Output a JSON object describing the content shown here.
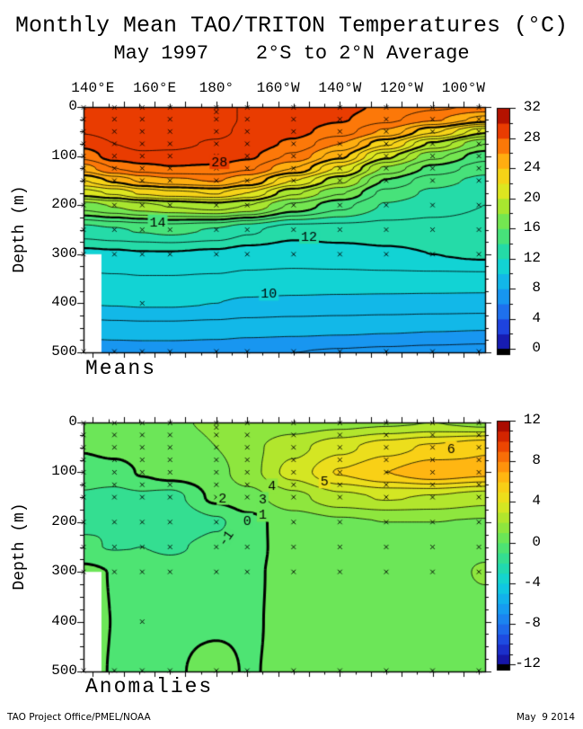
{
  "title": "Monthly Mean TAO/TRITON Temperatures (°C)",
  "subtitle": "May 1997    2°S to 2°N Average",
  "footer": {
    "left": "TAO Project Office/PMEL/NOAA",
    "right": "May  9 2014"
  },
  "style": {
    "palette_anchors": [
      "#140a96",
      "#1e3cdc",
      "#1e78f0",
      "#14a8f0",
      "#0fd2dc",
      "#28dca0",
      "#5ae664",
      "#a0e632",
      "#e6e61e",
      "#ffc814",
      "#ff820a",
      "#e63200",
      "#960000"
    ],
    "contour_color": "#000000",
    "background": "#ffffff",
    "out_of_range_color": "#000000"
  },
  "axes": {
    "lon_domain_deg_east": [
      137,
      267
    ],
    "lon_ticks": [
      {
        "lon": 140,
        "label": "140°E"
      },
      {
        "lon": 160,
        "label": "160°E"
      },
      {
        "lon": 180,
        "label": "180°"
      },
      {
        "lon": 200,
        "label": "160°W"
      },
      {
        "lon": 220,
        "label": "140°W"
      },
      {
        "lon": 240,
        "label": "120°W"
      },
      {
        "lon": 260,
        "label": "100°W"
      }
    ],
    "lon_minor_step": 5,
    "lon_major_step": 10,
    "depth_range": [
      0,
      500
    ],
    "depth_tick_labels": [
      0,
      100,
      200,
      300,
      400,
      500
    ],
    "depth_minor_step": 25,
    "depth_label": "Depth (m)"
  },
  "moorings": {
    "lons_deg_east": [
      137,
      147,
      156,
      165,
      180,
      190,
      205,
      220,
      235,
      250,
      265
    ],
    "depths_m": [
      1,
      25,
      50,
      75,
      100,
      125,
      150,
      200,
      250,
      300,
      500
    ],
    "extra_depths": {
      "156": [
        400
      ],
      "180": [
        10
      ]
    }
  },
  "missing_region": {
    "lon_from": 137,
    "lon_to": 142.8,
    "depth_from": 300,
    "depth_to": 500
  },
  "chart_data": [
    {
      "type": "heatmap",
      "caption": "Means",
      "units": "°C",
      "lons_deg_east": [
        137,
        147,
        156,
        165,
        180,
        190,
        205,
        220,
        235,
        250,
        267
      ],
      "depths_m": [
        0,
        25,
        50,
        75,
        100,
        125,
        150,
        175,
        200,
        250,
        300,
        350,
        400,
        450,
        500
      ],
      "values": [
        [
          29.4,
          29.5,
          29.6,
          29.5,
          29.3,
          28.9,
          28.6,
          28.3,
          27.8,
          27.2,
          26.8
        ],
        [
          29.3,
          29.5,
          29.6,
          29.5,
          29.3,
          28.9,
          28.5,
          28.1,
          27.3,
          26.2,
          24.6
        ],
        [
          29.1,
          29.4,
          29.5,
          29.5,
          29.2,
          28.8,
          28.3,
          27.5,
          25.8,
          23.2,
          20.2
        ],
        [
          28.3,
          29.0,
          29.3,
          29.2,
          28.9,
          28.6,
          27.8,
          26.0,
          23.2,
          19.8,
          17.0
        ],
        [
          27.4,
          28.5,
          28.8,
          28.8,
          28.6,
          28.2,
          26.8,
          24.3,
          20.3,
          17.3,
          15.4
        ],
        [
          25.5,
          27.0,
          27.6,
          27.9,
          27.8,
          27.2,
          25.0,
          21.8,
          17.8,
          15.7,
          14.4
        ],
        [
          23.0,
          24.2,
          25.2,
          25.7,
          26.1,
          25.0,
          22.0,
          19.3,
          15.9,
          14.4,
          13.7
        ],
        [
          20.5,
          21.2,
          22.2,
          22.7,
          23.1,
          22.0,
          19.2,
          17.1,
          14.7,
          13.8,
          13.3
        ],
        [
          17.5,
          18.1,
          18.7,
          19.1,
          19.6,
          19.0,
          16.8,
          15.3,
          13.9,
          13.4,
          13.0
        ],
        [
          13.6,
          13.9,
          14.1,
          14.3,
          13.9,
          13.2,
          12.4,
          12.5,
          12.55,
          12.6,
          12.6
        ],
        [
          11.7,
          11.8,
          11.9,
          11.9,
          11.75,
          11.5,
          11.4,
          11.6,
          11.8,
          12.0,
          12.2
        ],
        [
          10.85,
          10.9,
          10.95,
          10.95,
          10.9,
          10.8,
          10.75,
          10.7,
          10.7,
          10.7,
          10.7
        ],
        [
          10.0,
          10.05,
          10.1,
          10.1,
          10.0,
          9.85,
          9.75,
          9.7,
          9.65,
          9.6,
          9.55
        ],
        [
          8.6,
          8.7,
          8.75,
          8.75,
          8.65,
          8.5,
          8.4,
          8.3,
          8.2,
          8.1,
          8.05
        ],
        [
          7.2,
          7.3,
          7.35,
          7.35,
          7.25,
          7.1,
          7.0,
          6.9,
          6.8,
          6.7,
          6.6
        ]
      ],
      "contour_interval": 1,
      "thick_levels": [
        12,
        16,
        20,
        24,
        28
      ],
      "dashed_below": null,
      "fill_band_step": 2,
      "colorbar": {
        "min": 0,
        "max": 32,
        "labels": [
          32,
          28,
          24,
          20,
          16,
          12,
          8,
          4,
          0
        ],
        "minor_tick": 2,
        "major_tick": 4
      },
      "contour_labels": [
        {
          "level": 28,
          "lon": 181,
          "depth": 112
        },
        {
          "level": 14,
          "lon": 161,
          "depth": 234
        },
        {
          "level": 12,
          "lon": 210,
          "depth": 264
        },
        {
          "level": 10,
          "lon": 197,
          "depth": 380
        }
      ]
    },
    {
      "type": "heatmap",
      "caption": "Anomalies",
      "units": "°C",
      "lons_deg_east": [
        137,
        147,
        156,
        165,
        180,
        190,
        205,
        220,
        235,
        250,
        267
      ],
      "depths_m": [
        0,
        50,
        100,
        150,
        200,
        250,
        300,
        400,
        500
      ],
      "values": [
        [
          0.5,
          0.6,
          0.7,
          0.9,
          1.1,
          1.3,
          1.4,
          1.6,
          1.8,
          2.0,
          1.6
        ],
        [
          0.1,
          0.4,
          0.5,
          0.6,
          1.0,
          1.7,
          2.7,
          3.7,
          4.6,
          5.2,
          5.9
        ],
        [
          -0.6,
          -0.5,
          0.1,
          0.5,
          0.6,
          1.6,
          3.4,
          5.1,
          6.0,
          6.8,
          6.3
        ],
        [
          -1.1,
          -1.3,
          -1.2,
          -1.4,
          0.25,
          0.6,
          1.7,
          2.7,
          3.1,
          2.9,
          2.4
        ],
        [
          -1.1,
          -1.0,
          -1.6,
          -2.0,
          -1.2,
          -0.3,
          0.45,
          0.8,
          1.0,
          1.0,
          0.9
        ],
        [
          -0.9,
          -1.05,
          -1.0,
          -1.2,
          -0.6,
          -0.25,
          0.35,
          0.5,
          0.6,
          0.65,
          0.8
        ],
        [
          0.3,
          -0.05,
          -0.3,
          -0.4,
          -0.25,
          -0.15,
          0.3,
          0.4,
          0.45,
          0.5,
          1.1
        ],
        [
          0.35,
          -0.02,
          -0.1,
          -0.15,
          -0.12,
          -0.1,
          0.25,
          0.3,
          0.35,
          0.4,
          0.5
        ],
        [
          0.3,
          -0.05,
          -0.1,
          -0.1,
          0.25,
          -0.05,
          0.2,
          0.25,
          0.3,
          0.35,
          0.4
        ]
      ],
      "contour_interval": 1,
      "thick_levels": [
        0
      ],
      "dashed_below": 0,
      "fill_band_step": 1,
      "colorbar": {
        "min": -12,
        "max": 12,
        "labels": [
          12,
          8,
          4,
          0,
          -4,
          -8,
          -12
        ],
        "minor_tick": 1,
        "major_tick": 4
      },
      "contour_labels": [
        {
          "level": 6,
          "lon": 256,
          "depth": 52
        },
        {
          "level": 5,
          "lon": 215,
          "depth": 118
        },
        {
          "level": 4,
          "lon": 198,
          "depth": 127
        },
        {
          "level": 3,
          "lon": 195,
          "depth": 154
        },
        {
          "level": 2,
          "lon": 182,
          "depth": 151
        },
        {
          "level": 1,
          "lon": 195,
          "depth": 185
        },
        {
          "level": 0,
          "lon": 190,
          "depth": 196
        },
        {
          "level": -1,
          "lon": 183,
          "depth": 232,
          "rotate": -55
        }
      ]
    }
  ]
}
